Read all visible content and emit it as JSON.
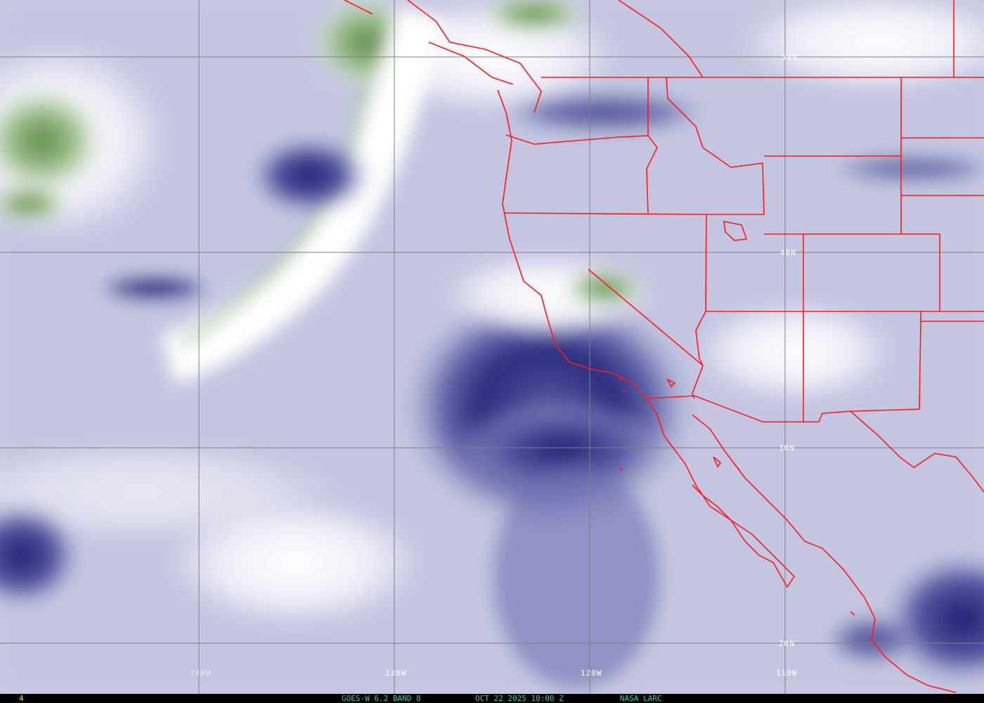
{
  "image": {
    "satellite": "GOES-W",
    "channel": "6.2",
    "band": "BAND 8",
    "date": "OCT 22 2025",
    "time": "10:00 Z",
    "source": "NASA LARC",
    "frame_number": "4"
  },
  "footer": {
    "frame": "4",
    "product": "GOES-W 6.2 BAND 8",
    "datetime": "OCT 22 2025 10:00 Z",
    "credit": "NASA LARC"
  },
  "grid": {
    "latitude_labels": [
      "50N",
      "40N",
      "30N",
      "20N"
    ],
    "longitude_labels": [
      "140W",
      "130W",
      "120W",
      "110W"
    ]
  },
  "colors": {
    "boundaries": "#ff1a1a",
    "grid": "#808080",
    "footer_text": "#1ccfb0",
    "frame_number": "#f2e600",
    "moist": "#ffffff",
    "dry": "#1a1a6e",
    "cloud_top": "#4e8a3a"
  }
}
